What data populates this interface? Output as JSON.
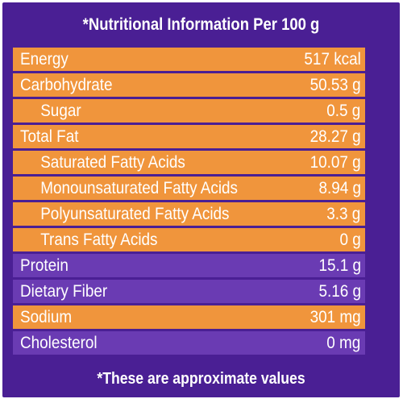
{
  "header": {
    "title": "*Nutritional Information Per 100 g"
  },
  "rows": [
    {
      "label": "Energy",
      "value": "517 kcal",
      "style": "orange",
      "indent": false
    },
    {
      "label": "Carbohydrate",
      "value": "50.53 g",
      "style": "orange",
      "indent": false
    },
    {
      "label": "Sugar",
      "value": "0.5 g",
      "style": "orange",
      "indent": true
    },
    {
      "label": "Total Fat",
      "value": "28.27 g",
      "style": "orange",
      "indent": false
    },
    {
      "label": "Saturated Fatty Acids",
      "value": "10.07 g",
      "style": "orange",
      "indent": true
    },
    {
      "label": "Monounsaturated Fatty Acids",
      "value": "8.94 g",
      "style": "orange",
      "indent": true
    },
    {
      "label": "Polyunsaturated Fatty Acids",
      "value": "3.3 g",
      "style": "orange",
      "indent": true
    },
    {
      "label": "Trans Fatty Acids",
      "value": "0 g",
      "style": "orange",
      "indent": true
    },
    {
      "label": "Protein",
      "value": "15.1 g",
      "style": "purple",
      "indent": false
    },
    {
      "label": "Dietary Fiber",
      "value": "5.16 g",
      "style": "purple",
      "indent": false
    },
    {
      "label": "Sodium",
      "value": "301 mg",
      "style": "orange",
      "indent": false
    },
    {
      "label": "Cholesterol",
      "value": "0 mg",
      "style": "purple",
      "indent": false
    }
  ],
  "footer": {
    "note": "*These are approximate values"
  },
  "colors": {
    "background": "#4a1f94",
    "orange": "#f0953c",
    "purple": "#6a3bb3",
    "text": "#ffffff"
  }
}
